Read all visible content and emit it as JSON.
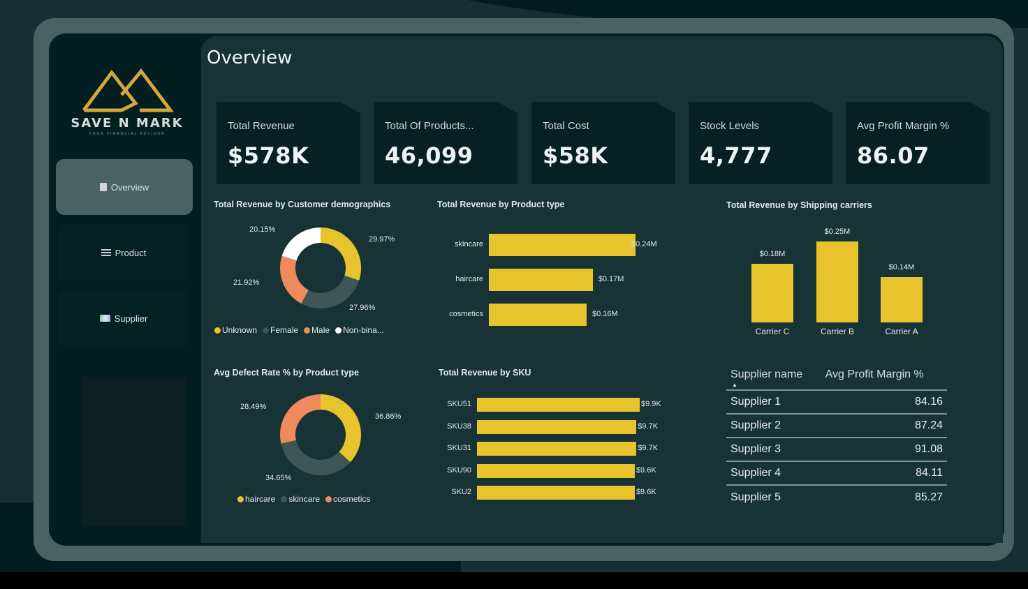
{
  "brand": {
    "name": "SAVE N MARK",
    "tagline": "YOUR FINANCIAL ADVISOR",
    "accent": "#d6a53b"
  },
  "sidebar": {
    "items": [
      {
        "label": "Overview",
        "icon": "page-icon",
        "active": true
      },
      {
        "label": "Product",
        "icon": "list-icon",
        "active": false
      },
      {
        "label": "Supplier",
        "icon": "flag-icon",
        "active": false
      }
    ]
  },
  "page": {
    "title": "Overview"
  },
  "kpis": [
    {
      "label": "Total Revenue",
      "value": "$578K"
    },
    {
      "label": "Total Of Products...",
      "value": "46,099"
    },
    {
      "label": "Total Cost",
      "value": "$58K"
    },
    {
      "label": "Stock Levels",
      "value": "4,777"
    },
    {
      "label": "Avg Profit Margin %",
      "value": "86.07"
    }
  ],
  "colors": {
    "yellow": "#e7c32c",
    "grey": "#3f5656",
    "orange": "#ee8a5c",
    "white": "#ffffff"
  },
  "chart_data": [
    {
      "type": "pie",
      "title": "Total Revenue by Customer demographics",
      "donut": true,
      "categories": [
        "Unknown",
        "Female",
        "Male",
        "Non-binary"
      ],
      "legend_labels": [
        "Unknown",
        "Female",
        "Male",
        "Non-bina..."
      ],
      "values": [
        29.97,
        27.96,
        21.92,
        20.15
      ],
      "data_labels": [
        "29.97%",
        "27.96%",
        "21.92%",
        "20.15%"
      ],
      "colors": [
        "#e7c32c",
        "#3f5656",
        "#ee8a5c",
        "#ffffff"
      ],
      "legend": "bottom"
    },
    {
      "type": "bar",
      "orientation": "horizontal",
      "title": "Total Revenue by Product type",
      "categories": [
        "skincare",
        "haircare",
        "cosmetics"
      ],
      "values": [
        0.24,
        0.17,
        0.16
      ],
      "unit": "$M",
      "data_labels": [
        "$0.24M",
        "$0.17M",
        "$0.16M"
      ]
    },
    {
      "type": "bar",
      "orientation": "vertical",
      "title": "Total Revenue by Shipping carriers",
      "categories": [
        "Carrier C",
        "Carrier B",
        "Carrier A"
      ],
      "values": [
        0.18,
        0.25,
        0.14
      ],
      "unit": "$M",
      "data_labels": [
        "$0.18M",
        "$0.25M",
        "$0.14M"
      ]
    },
    {
      "type": "pie",
      "title": "Avg Defect Rate % by Product type",
      "donut": true,
      "categories": [
        "haircare",
        "skincare",
        "cosmetics"
      ],
      "values": [
        36.86,
        34.65,
        28.49
      ],
      "data_labels": [
        "36.86%",
        "34.65%",
        "28.49%"
      ],
      "colors": [
        "#e7c32c",
        "#3f5656",
        "#ee8a5c"
      ],
      "legend": "bottom"
    },
    {
      "type": "bar",
      "orientation": "horizontal",
      "title": "Total Revenue by SKU",
      "categories": [
        "SKU51",
        "SKU38",
        "SKU31",
        "SKU90",
        "SKU2"
      ],
      "values": [
        9.9,
        9.7,
        9.7,
        9.6,
        9.6
      ],
      "unit": "$K",
      "data_labels": [
        "$9.9K",
        "$9.7K",
        "$9.7K",
        "$9.6K",
        "$9.6K"
      ]
    }
  ],
  "supplier_table": {
    "columns": [
      "Supplier name",
      "Avg Profit Margin %"
    ],
    "sort_indicator": "▲",
    "rows": [
      [
        "Supplier 1",
        "84.16"
      ],
      [
        "Supplier 2",
        "87.24"
      ],
      [
        "Supplier 3",
        "91.08"
      ],
      [
        "Supplier 4",
        "84.11"
      ],
      [
        "Supplier 5",
        "85.27"
      ]
    ]
  }
}
